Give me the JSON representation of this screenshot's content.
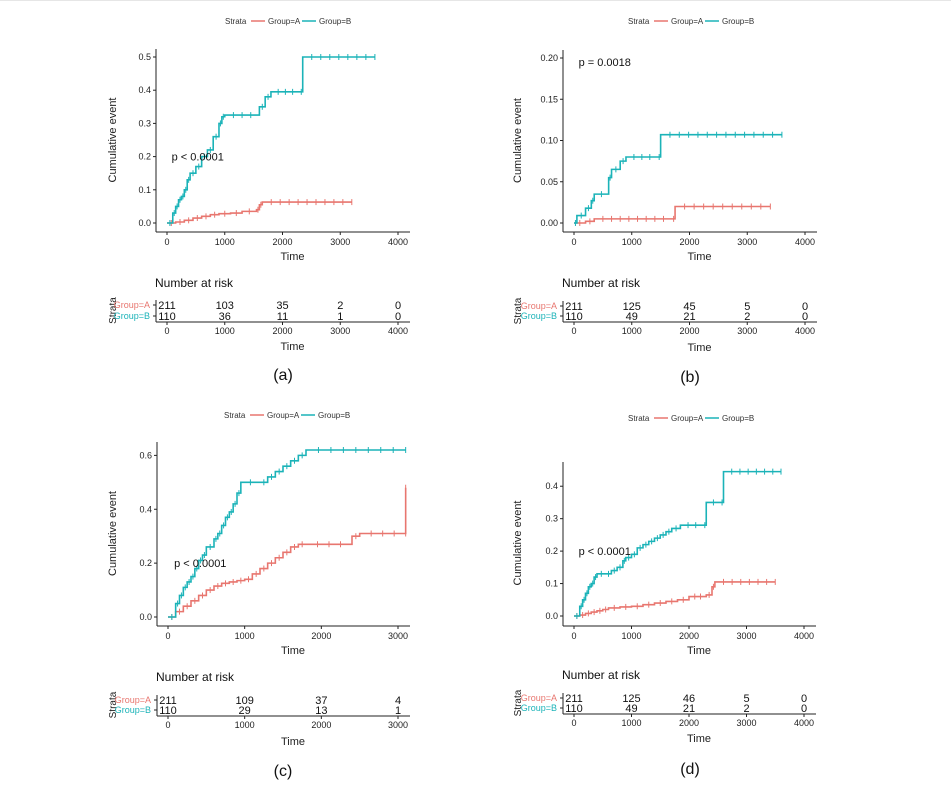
{
  "legend": {
    "title": "Strata",
    "items": [
      "Group=A",
      "Group=B"
    ]
  },
  "colors": {
    "group_a": "#e8766f",
    "group_b": "#1bb3b8"
  },
  "chart_data": [
    {
      "id": "a",
      "type": "line",
      "caption": "(a)",
      "ylabel": "Cumulative event",
      "xlabel": "Time",
      "xlim": [
        0,
        4000
      ],
      "ylim": [
        0,
        0.5
      ],
      "xticks": [
        0,
        1000,
        2000,
        3000,
        4000
      ],
      "yticks": [
        0.0,
        0.1,
        0.2,
        0.3,
        0.4,
        0.5
      ],
      "y_decimals": 1,
      "pvalue": "p < 0.0001",
      "pvalue_pos": [
        80,
        0.2
      ],
      "series": [
        {
          "name": "Group=A",
          "x": [
            0,
            150,
            300,
            450,
            600,
            750,
            900,
            1100,
            1300,
            1550,
            1600,
            1650,
            3200
          ],
          "y": [
            0,
            0.003,
            0.008,
            0.015,
            0.02,
            0.025,
            0.028,
            0.03,
            0.035,
            0.04,
            0.055,
            0.063,
            0.063
          ]
        },
        {
          "name": "Group=B",
          "x": [
            0,
            100,
            150,
            200,
            250,
            300,
            350,
            400,
            500,
            600,
            700,
            800,
            900,
            950,
            1000,
            1600,
            1700,
            1800,
            2300,
            2350,
            3600
          ],
          "y": [
            0,
            0.03,
            0.05,
            0.07,
            0.08,
            0.1,
            0.13,
            0.15,
            0.17,
            0.2,
            0.22,
            0.26,
            0.3,
            0.32,
            0.325,
            0.35,
            0.38,
            0.395,
            0.395,
            0.5,
            0.5
          ]
        }
      ],
      "risk_title": "Number at risk",
      "risk_xlabel": "Time",
      "risk_strata_label": "Strata",
      "risk_x": [
        0,
        1000,
        2000,
        3000,
        4000
      ],
      "risk": [
        {
          "name": "Group=A",
          "values": [
            "211",
            "103",
            "35",
            "2",
            "0"
          ]
        },
        {
          "name": "Group=B",
          "values": [
            "110",
            "36",
            "11",
            "1",
            "0"
          ]
        }
      ]
    },
    {
      "id": "b",
      "type": "line",
      "caption": "(b)",
      "ylabel": "Cumulative event",
      "xlabel": "Time",
      "xlim": [
        0,
        4000
      ],
      "ylim": [
        0,
        0.2
      ],
      "xticks": [
        0,
        1000,
        2000,
        3000,
        4000
      ],
      "yticks": [
        0.0,
        0.05,
        0.1,
        0.15,
        0.2
      ],
      "y_decimals": 2,
      "pvalue": "p = 0.0018",
      "pvalue_pos": [
        80,
        0.195
      ],
      "series": [
        {
          "name": "Group=A",
          "x": [
            0,
            200,
            350,
            1700,
            1750,
            3400
          ],
          "y": [
            0,
            0.002,
            0.005,
            0.005,
            0.02,
            0.02
          ]
        },
        {
          "name": "Group=B",
          "x": [
            0,
            50,
            200,
            300,
            350,
            600,
            650,
            800,
            900,
            1450,
            1500,
            3600
          ],
          "y": [
            0,
            0.009,
            0.018,
            0.027,
            0.035,
            0.055,
            0.065,
            0.075,
            0.08,
            0.08,
            0.107,
            0.107
          ]
        }
      ],
      "risk_title": "Number at risk",
      "risk_xlabel": "Time",
      "risk_strata_label": "Strata",
      "risk_x": [
        0,
        1000,
        2000,
        3000,
        4000
      ],
      "risk": [
        {
          "name": "Group=A",
          "values": [
            "211",
            "125",
            "45",
            "5",
            "0"
          ]
        },
        {
          "name": "Group=B",
          "values": [
            "110",
            "49",
            "21",
            "2",
            "0"
          ]
        }
      ]
    },
    {
      "id": "c",
      "type": "line",
      "caption": "(c)",
      "ylabel": "Cumulative event",
      "xlabel": "Time",
      "xlim": [
        0,
        3000
      ],
      "ylim": [
        0,
        0.62
      ],
      "xticks": [
        0,
        1000,
        2000,
        3000
      ],
      "yticks": [
        0.0,
        0.2,
        0.4,
        0.6
      ],
      "y_decimals": 1,
      "pvalue": "p < 0.0001",
      "pvalue_pos": [
        80,
        0.2
      ],
      "series": [
        {
          "name": "Group=A",
          "x": [
            0,
            100,
            200,
            300,
            400,
            500,
            600,
            700,
            800,
            900,
            1000,
            1100,
            1200,
            1300,
            1400,
            1500,
            1600,
            1700,
            1800,
            2400,
            2500,
            3100,
            3100
          ],
          "y": [
            0,
            0.02,
            0.04,
            0.06,
            0.08,
            0.1,
            0.115,
            0.125,
            0.13,
            0.135,
            0.14,
            0.16,
            0.18,
            0.2,
            0.22,
            0.24,
            0.26,
            0.27,
            0.27,
            0.3,
            0.31,
            0.31,
            0.48
          ]
        },
        {
          "name": "Group=B",
          "x": [
            0,
            100,
            150,
            200,
            250,
            300,
            350,
            400,
            450,
            500,
            600,
            650,
            700,
            750,
            800,
            850,
            900,
            950,
            1200,
            1300,
            1400,
            1500,
            1600,
            1700,
            1800,
            3100
          ],
          "y": [
            0,
            0.05,
            0.08,
            0.11,
            0.13,
            0.15,
            0.18,
            0.21,
            0.23,
            0.26,
            0.29,
            0.31,
            0.34,
            0.37,
            0.39,
            0.42,
            0.46,
            0.5,
            0.5,
            0.52,
            0.54,
            0.56,
            0.58,
            0.6,
            0.62,
            0.62
          ]
        }
      ],
      "risk_title": "Number at risk",
      "risk_xlabel": "Time",
      "risk_strata_label": "Strata",
      "risk_x": [
        0,
        1000,
        2000,
        3000
      ],
      "risk": [
        {
          "name": "Group=A",
          "values": [
            "211",
            "109",
            "37",
            "4"
          ]
        },
        {
          "name": "Group=B",
          "values": [
            "110",
            "29",
            "13",
            "1"
          ]
        }
      ]
    },
    {
      "id": "d",
      "type": "line",
      "caption": "(d)",
      "ylabel": "Cumulative event",
      "xlabel": "Time",
      "xlim": [
        0,
        4000
      ],
      "ylim": [
        0,
        0.45
      ],
      "xticks": [
        0,
        1000,
        2000,
        3000,
        4000
      ],
      "yticks": [
        0.0,
        0.1,
        0.2,
        0.3,
        0.4
      ],
      "y_decimals": 1,
      "pvalue": "p < 0.0001",
      "pvalue_pos": [
        80,
        0.2
      ],
      "series": [
        {
          "name": "Group=A",
          "x": [
            0,
            100,
            200,
            300,
            400,
            500,
            600,
            800,
            1000,
            1200,
            1400,
            1600,
            1800,
            2000,
            2300,
            2400,
            2450,
            3500
          ],
          "y": [
            0,
            0.003,
            0.008,
            0.012,
            0.016,
            0.02,
            0.025,
            0.028,
            0.03,
            0.035,
            0.04,
            0.045,
            0.05,
            0.06,
            0.065,
            0.09,
            0.105,
            0.105
          ]
        },
        {
          "name": "Group=B",
          "x": [
            0,
            100,
            150,
            200,
            250,
            300,
            350,
            400,
            550,
            650,
            750,
            850,
            900,
            1000,
            1100,
            1200,
            1300,
            1400,
            1500,
            1600,
            1700,
            1850,
            2250,
            2300,
            2550,
            2600,
            3600
          ],
          "y": [
            0,
            0.03,
            0.05,
            0.07,
            0.09,
            0.1,
            0.12,
            0.13,
            0.13,
            0.14,
            0.15,
            0.17,
            0.18,
            0.19,
            0.21,
            0.22,
            0.23,
            0.24,
            0.25,
            0.26,
            0.27,
            0.28,
            0.28,
            0.35,
            0.35,
            0.445,
            0.445
          ]
        }
      ],
      "risk_title": "Number at risk",
      "risk_xlabel": "Time",
      "risk_strata_label": "Strata",
      "risk_x": [
        0,
        1000,
        2000,
        3000,
        4000
      ],
      "risk": [
        {
          "name": "Group=A",
          "values": [
            "211",
            "125",
            "46",
            "5",
            "0"
          ]
        },
        {
          "name": "Group=B",
          "values": [
            "110",
            "49",
            "21",
            "2",
            "0"
          ]
        }
      ]
    }
  ]
}
